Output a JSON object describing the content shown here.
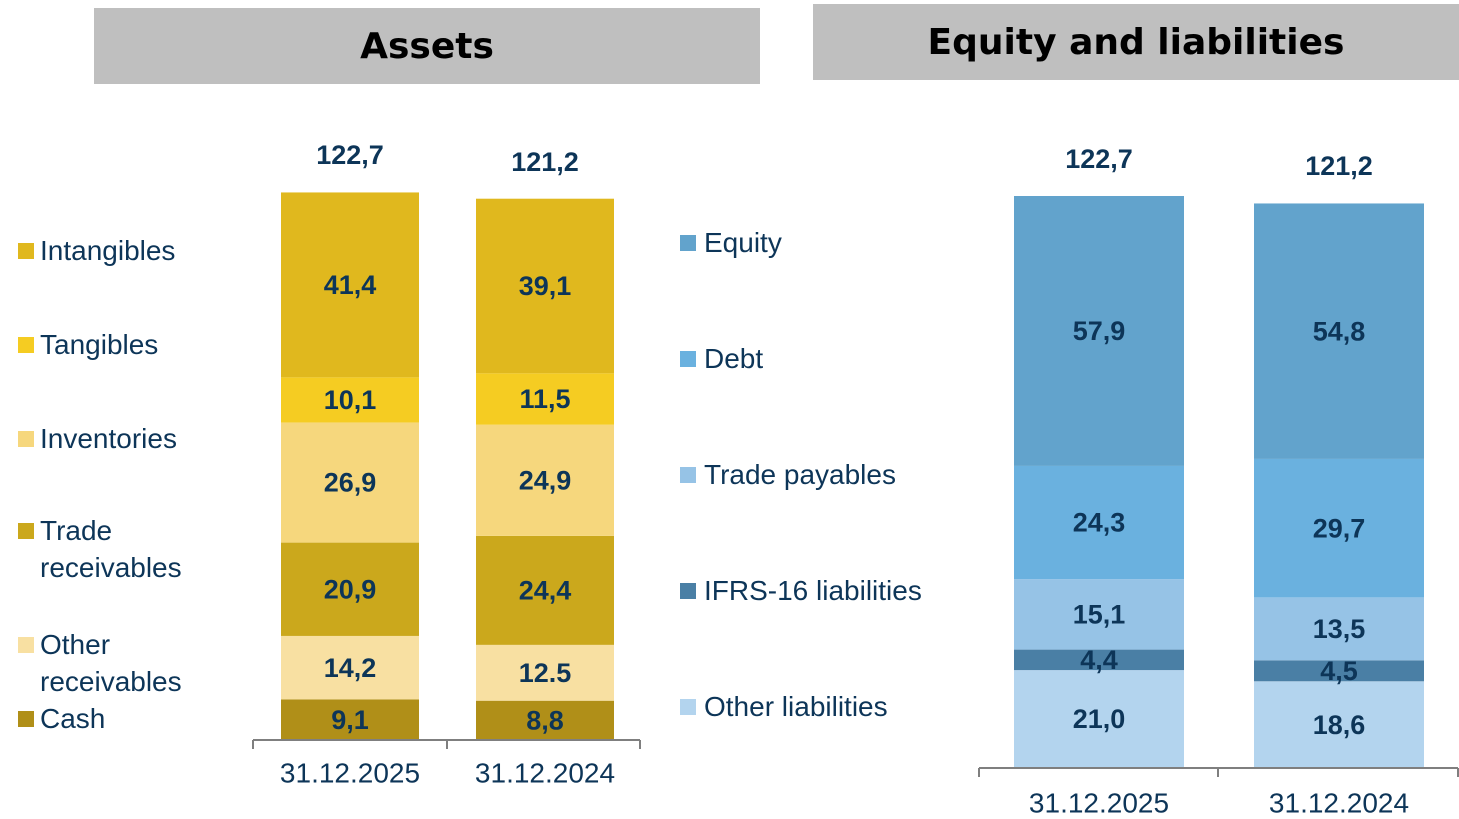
{
  "chart_data": [
    {
      "type": "stacked_bar",
      "title": "Assets",
      "categories": [
        "31.12.2025",
        "31.12.2024"
      ],
      "totals": [
        122.7,
        121.2
      ],
      "total_labels": [
        "122,7",
        "121,2"
      ],
      "series": [
        {
          "name": "Cash",
          "color": "#b08f18",
          "values": [
            9.1,
            8.8
          ],
          "value_labels": [
            "9,1",
            "8,8"
          ]
        },
        {
          "name": "Other receivables",
          "color": "#f8e0a2",
          "values": [
            14.2,
            12.5
          ],
          "value_labels": [
            "14,2",
            "12.5"
          ]
        },
        {
          "name": "Trade receivables",
          "color": "#cba81c",
          "values": [
            20.9,
            24.4
          ],
          "value_labels": [
            "20,9",
            "24,4"
          ]
        },
        {
          "name": "Inventories",
          "color": "#f6d77d",
          "values": [
            26.9,
            24.9
          ],
          "value_labels": [
            "26,9",
            "24,9"
          ]
        },
        {
          "name": "Tangibles",
          "color": "#f5cc22",
          "values": [
            10.1,
            11.5
          ],
          "value_labels": [
            "10,1",
            "11,5"
          ]
        },
        {
          "name": "Intangibles",
          "color": "#e0b81e",
          "values": [
            41.4,
            39.1
          ],
          "value_labels": [
            "41,4",
            "39,1"
          ]
        }
      ]
    },
    {
      "type": "stacked_bar",
      "title": "Equity and liabilities",
      "categories": [
        "31.12.2025",
        "31.12.2024"
      ],
      "totals": [
        122.7,
        121.2
      ],
      "total_labels": [
        "122,7",
        "121,2"
      ],
      "series": [
        {
          "name": "Other liabilities",
          "color": "#b3d4ee",
          "values": [
            21.0,
            18.6
          ],
          "value_labels": [
            "21,0",
            "18,6"
          ]
        },
        {
          "name": "IFRS-16 liabilities",
          "color": "#4a7fa5",
          "values": [
            4.4,
            4.5
          ],
          "value_labels": [
            "4,4",
            "4,5"
          ]
        },
        {
          "name": "Trade payables",
          "color": "#96c3e6",
          "values": [
            15.1,
            13.5
          ],
          "value_labels": [
            "15,1",
            "13,5"
          ]
        },
        {
          "name": "Debt",
          "color": "#6ab1df",
          "values": [
            24.3,
            29.7
          ],
          "value_labels": [
            "24,3",
            "29,7"
          ]
        },
        {
          "name": "Equity",
          "color": "#62a3cc",
          "values": [
            57.9,
            54.8
          ],
          "value_labels": [
            "57,9",
            "54,8"
          ]
        }
      ]
    }
  ]
}
